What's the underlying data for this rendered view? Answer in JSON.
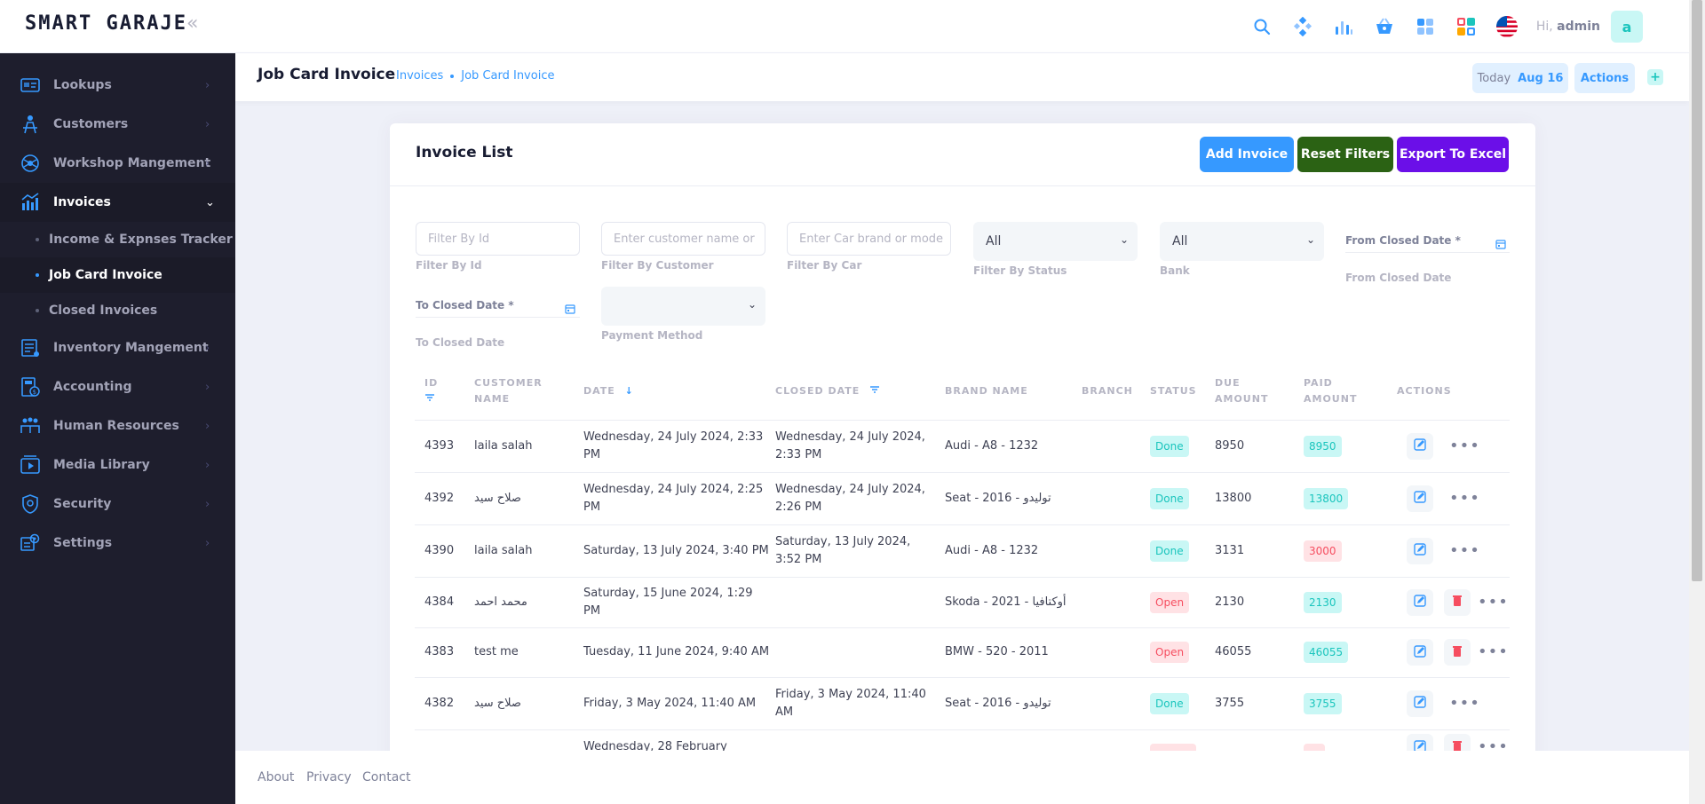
{
  "app": {
    "logo": "SMART GARAJE",
    "greeting_prefix": "Hi,",
    "greeting_user": "admin",
    "avatar_letter": "a"
  },
  "header_icons": [
    "search-icon",
    "kanban-icon",
    "bar-chart-icon",
    "basket-icon",
    "apps-icon",
    "widgets-icon",
    "us-flag-icon"
  ],
  "sidebar": {
    "items": [
      {
        "label": "Lookups",
        "icon": "lookups-icon"
      },
      {
        "label": "Customers",
        "icon": "customers-icon"
      },
      {
        "label": "Workshop Mangement",
        "icon": "workshop-icon"
      },
      {
        "label": "Invoices",
        "icon": "invoices-icon",
        "expanded": true
      },
      {
        "label": "Inventory Mangement",
        "icon": "inventory-icon"
      },
      {
        "label": "Accounting",
        "icon": "accounting-icon"
      },
      {
        "label": "Human Resources",
        "icon": "hr-icon"
      },
      {
        "label": "Media Library",
        "icon": "media-icon"
      },
      {
        "label": "Security",
        "icon": "security-icon"
      },
      {
        "label": "Settings",
        "icon": "settings-icon"
      }
    ],
    "sub_items": [
      {
        "label": "Income & Expnses Tracker"
      },
      {
        "label": "Job Card Invoice",
        "active": true
      },
      {
        "label": "Closed Invoices"
      }
    ]
  },
  "subheader": {
    "title": "Job Card Invoice",
    "breadcrumbs": [
      "Invoices",
      "Job Card Invoice"
    ],
    "today_label": "Today",
    "today_date": "Aug 16",
    "actions_label": "Actions",
    "plus_label": "+"
  },
  "card": {
    "title": "Invoice List",
    "add_label": "Add Invoice",
    "reset_label": "Reset Filters",
    "export_label": "Export To Excel"
  },
  "filters": {
    "id_placeholder": "Filter By Id",
    "id_help": "Filter By Id",
    "customer_placeholder": "Enter customer name or",
    "customer_help": "Filter By Customer",
    "car_placeholder": "Enter Car brand or mode",
    "car_help": "Filter By Car",
    "status_value": "All",
    "status_help": "Filter By Status",
    "bank_value": "All",
    "bank_help": "Bank",
    "from_date_label": "From Closed Date *",
    "from_date_help": "From Closed Date",
    "to_date_label": "To Closed Date *",
    "to_date_help": "To Closed Date",
    "payment_value": "",
    "payment_help": "Payment Method"
  },
  "table": {
    "headers": {
      "id": "ID",
      "customer": [
        "CUSTOMER",
        "NAME"
      ],
      "date": "DATE",
      "closed": "CLOSED DATE",
      "brand": "BRAND NAME",
      "branch": "BRANCH",
      "status": "STATUS",
      "due": [
        "DUE",
        "AMOUNT"
      ],
      "paid": [
        "PAID",
        "AMOUNT"
      ],
      "actions": "ACTIONS"
    },
    "rows": [
      {
        "id": "4393",
        "customer": "laila salah",
        "date": [
          "Wednesday, 24 July 2024, 2:33",
          "PM"
        ],
        "closed": [
          "Wednesday, 24 July 2024,",
          "2:33 PM"
        ],
        "brand": "Audi - A8 - 1232",
        "status": "Done",
        "due": "8950",
        "paid": "8950",
        "paid_state": "ok",
        "deletable": false
      },
      {
        "id": "4392",
        "customer": "صلاح سيد",
        "date": [
          "Wednesday, 24 July 2024, 2:25",
          "PM"
        ],
        "closed": [
          "Wednesday, 24 July 2024,",
          "2:26 PM"
        ],
        "brand": "Seat - 2016 - توليدو",
        "status": "Done",
        "due": "13800",
        "paid": "13800",
        "paid_state": "ok",
        "deletable": false
      },
      {
        "id": "4390",
        "customer": "laila salah",
        "date": [
          "Saturday, 13 July 2024, 3:40 PM"
        ],
        "closed": [
          "Saturday, 13 July 2024,",
          "3:52 PM"
        ],
        "brand": "Audi - A8 - 1232",
        "status": "Done",
        "due": "3131",
        "paid": "3000",
        "paid_state": "short",
        "deletable": false
      },
      {
        "id": "4384",
        "customer": "محمد احمد",
        "date": [
          "Saturday, 15 June 2024, 1:29",
          "PM"
        ],
        "closed": [],
        "brand": "Skoda - 2021 - أوكتافيا",
        "status": "Open",
        "due": "2130",
        "paid": "2130",
        "paid_state": "ok",
        "deletable": true
      },
      {
        "id": "4383",
        "customer": "test me",
        "date": [
          "Tuesday, 11 June 2024, 9:40 AM"
        ],
        "closed": [],
        "brand": "BMW - 520 - 2011",
        "status": "Open",
        "due": "46055",
        "paid": "46055",
        "paid_state": "ok",
        "deletable": true
      },
      {
        "id": "4382",
        "customer": "صلاح سيد",
        "date": [
          "Friday, 3 May 2024, 11:40 AM"
        ],
        "closed": [
          "Friday, 3 May 2024, 11:40",
          "AM"
        ],
        "brand": "Seat - 2016 - توليدو",
        "status": "Done",
        "due": "3755",
        "paid": "3755",
        "paid_state": "ok",
        "deletable": false
      },
      {
        "id": "",
        "customer": "",
        "date": [
          "Wednesday, 28 February"
        ],
        "closed": [],
        "brand": "",
        "status": "",
        "due": "",
        "paid": "",
        "paid_state": "short",
        "deletable": true
      }
    ]
  },
  "footer": {
    "links": [
      "About",
      "Privacy",
      "Contact"
    ]
  },
  "colors": {
    "primary": "#3699ff",
    "success_dark": "#2b6214",
    "purple": "#6b0fe8",
    "sidebar_bg": "#1e1e2d",
    "done_bg": "#c9f7f5",
    "open_bg": "#ffe2e5"
  }
}
